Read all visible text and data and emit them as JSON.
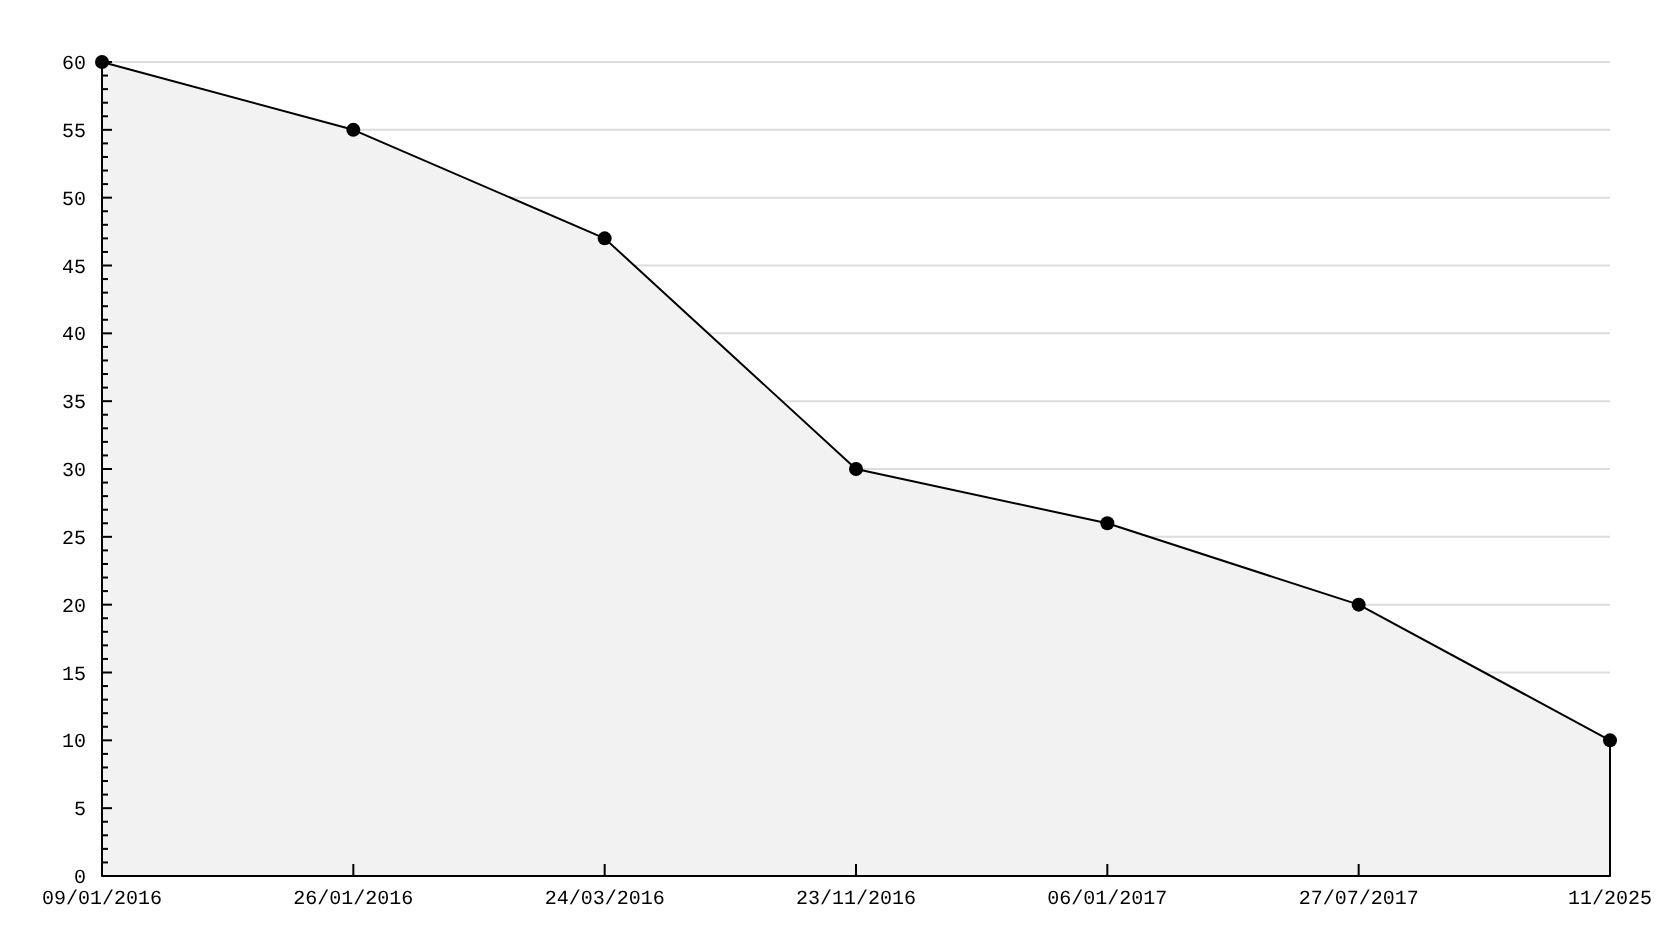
{
  "chart_data": {
    "type": "area",
    "categories": [
      "09/01/2016",
      "26/01/2016",
      "24/03/2016",
      "23/11/2016",
      "06/01/2017",
      "27/07/2017",
      "11/2025"
    ],
    "values": [
      60,
      55,
      47,
      30,
      26,
      20,
      10
    ],
    "color": "#f2f2f2",
    "ylim": [
      0,
      60
    ],
    "yticks": [
      0,
      {
        "value": 1,
        "label": null
      },
      {
        "value": 2,
        "label": null
      },
      {
        "value": 3,
        "label": null
      },
      {
        "value": 4,
        "label": null
      },
      5,
      {
        "value": 6,
        "label": null
      },
      {
        "value": 7,
        "label": null
      },
      {
        "value": 8,
        "label": null
      },
      {
        "value": 9,
        "label": null
      },
      10,
      {
        "value": 11,
        "label": null
      },
      {
        "value": 12,
        "label": null
      },
      {
        "value": 13,
        "label": null
      },
      {
        "value": 14,
        "label": null
      },
      15,
      {
        "value": 16,
        "label": null
      },
      {
        "value": 17,
        "label": null
      },
      {
        "value": 18,
        "label": null
      },
      {
        "value": 19,
        "label": null
      },
      20,
      {
        "value": 21,
        "label": null
      },
      {
        "value": 22,
        "label": null
      },
      {
        "value": 23,
        "label": null
      },
      {
        "value": 24,
        "label": null
      },
      25,
      {
        "value": 26,
        "label": null
      },
      {
        "value": 27,
        "label": null
      },
      {
        "value": 28,
        "label": null
      },
      {
        "value": 29,
        "label": null
      },
      30,
      {
        "value": 31,
        "label": null
      },
      {
        "value": 32,
        "label": null
      },
      {
        "value": 33,
        "label": null
      },
      {
        "value": 34,
        "label": null
      },
      35,
      {
        "value": 36,
        "label": null
      },
      {
        "value": 37,
        "label": null
      },
      {
        "value": 38,
        "label": null
      },
      {
        "value": 39,
        "label": null
      },
      40,
      {
        "value": 41,
        "label": null
      },
      {
        "value": 42,
        "label": null
      },
      {
        "value": 43,
        "label": null
      },
      {
        "value": 44,
        "label": null
      },
      45,
      {
        "value": 46,
        "label": null
      },
      {
        "value": 47,
        "label": null
      },
      {
        "value": 48,
        "label": null
      },
      {
        "value": 49,
        "label": null
      },
      50,
      {
        "value": 51,
        "label": null
      },
      {
        "value": 52,
        "label": null
      },
      {
        "value": 53,
        "label": null
      },
      {
        "value": 54,
        "label": null
      },
      55,
      {
        "value": 56,
        "label": null
      },
      {
        "value": 57,
        "label": null
      },
      {
        "value": 58,
        "label": null
      },
      {
        "value": 59,
        "label": null
      },
      60
    ],
    "grid": "y",
    "marker": "circle"
  }
}
